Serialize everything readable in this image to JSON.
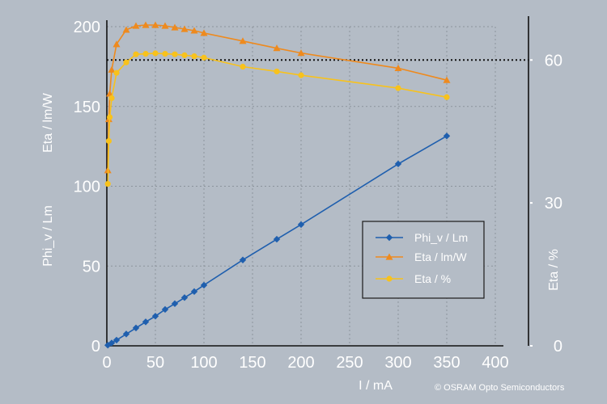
{
  "chart_data": {
    "type": "line",
    "xlabel": "I / mA",
    "ylabel_left_top": "Eta / lm/W",
    "ylabel_left_bottom": "Phi_v / Lm",
    "ylabel_right": "Eta / %",
    "xlim": [
      0,
      400
    ],
    "ylim_left": [
      0,
      200
    ],
    "ylim_right": [
      0,
      67
    ],
    "x_ticks": [
      0,
      50,
      100,
      150,
      200,
      250,
      300,
      350,
      400
    ],
    "y_ticks_left": [
      0,
      50,
      100,
      150,
      200
    ],
    "y_ticks_right": [
      0,
      30,
      60
    ],
    "reference_line": {
      "axis": "right",
      "value": 60
    },
    "grid": true,
    "legend_position": "center-right",
    "series": [
      {
        "name": "Phi_v / Lm",
        "axis": "left",
        "color": "#1f5fae",
        "marker": "diamond",
        "x": [
          1,
          5,
          10,
          20,
          30,
          40,
          50,
          60,
          70,
          80,
          90,
          100,
          140,
          175,
          200,
          300,
          350
        ],
        "y": [
          0.4,
          1.8,
          3.6,
          7.4,
          11.2,
          15.0,
          18.6,
          22.8,
          26.4,
          30.2,
          34.0,
          38.0,
          53.8,
          66.8,
          76.0,
          114.0,
          131.5
        ]
      },
      {
        "name": "Eta / lm/W",
        "axis": "left",
        "color": "#ee8a1e",
        "marker": "triangle",
        "x": [
          1,
          2,
          3,
          5,
          10,
          20,
          30,
          40,
          50,
          60,
          70,
          80,
          90,
          100,
          140,
          175,
          200,
          300,
          350
        ],
        "y": [
          110,
          142,
          158,
          173,
          189,
          198,
          200.5,
          201,
          201,
          200.5,
          199.5,
          198.5,
          197.5,
          196,
          191,
          186.5,
          183.5,
          174,
          166.5
        ]
      },
      {
        "name": "Eta / %",
        "axis": "right",
        "color": "#f8c21c",
        "marker": "circle",
        "x": [
          1,
          2,
          3,
          5,
          10,
          20,
          30,
          40,
          50,
          60,
          70,
          80,
          90,
          100,
          140,
          175,
          200,
          300,
          350
        ],
        "y": [
          34,
          43,
          48,
          52,
          57.3,
          59.5,
          61.2,
          61.3,
          61.4,
          61.3,
          61.2,
          61.0,
          60.8,
          60.5,
          58.6,
          57.6,
          56.8,
          54.1,
          52.2
        ]
      }
    ]
  },
  "legend": {
    "items": [
      "Phi_v / Lm",
      "Eta / lm/W",
      "Eta / %"
    ]
  },
  "copyright": "©   OSRAM Opto Semiconductors"
}
